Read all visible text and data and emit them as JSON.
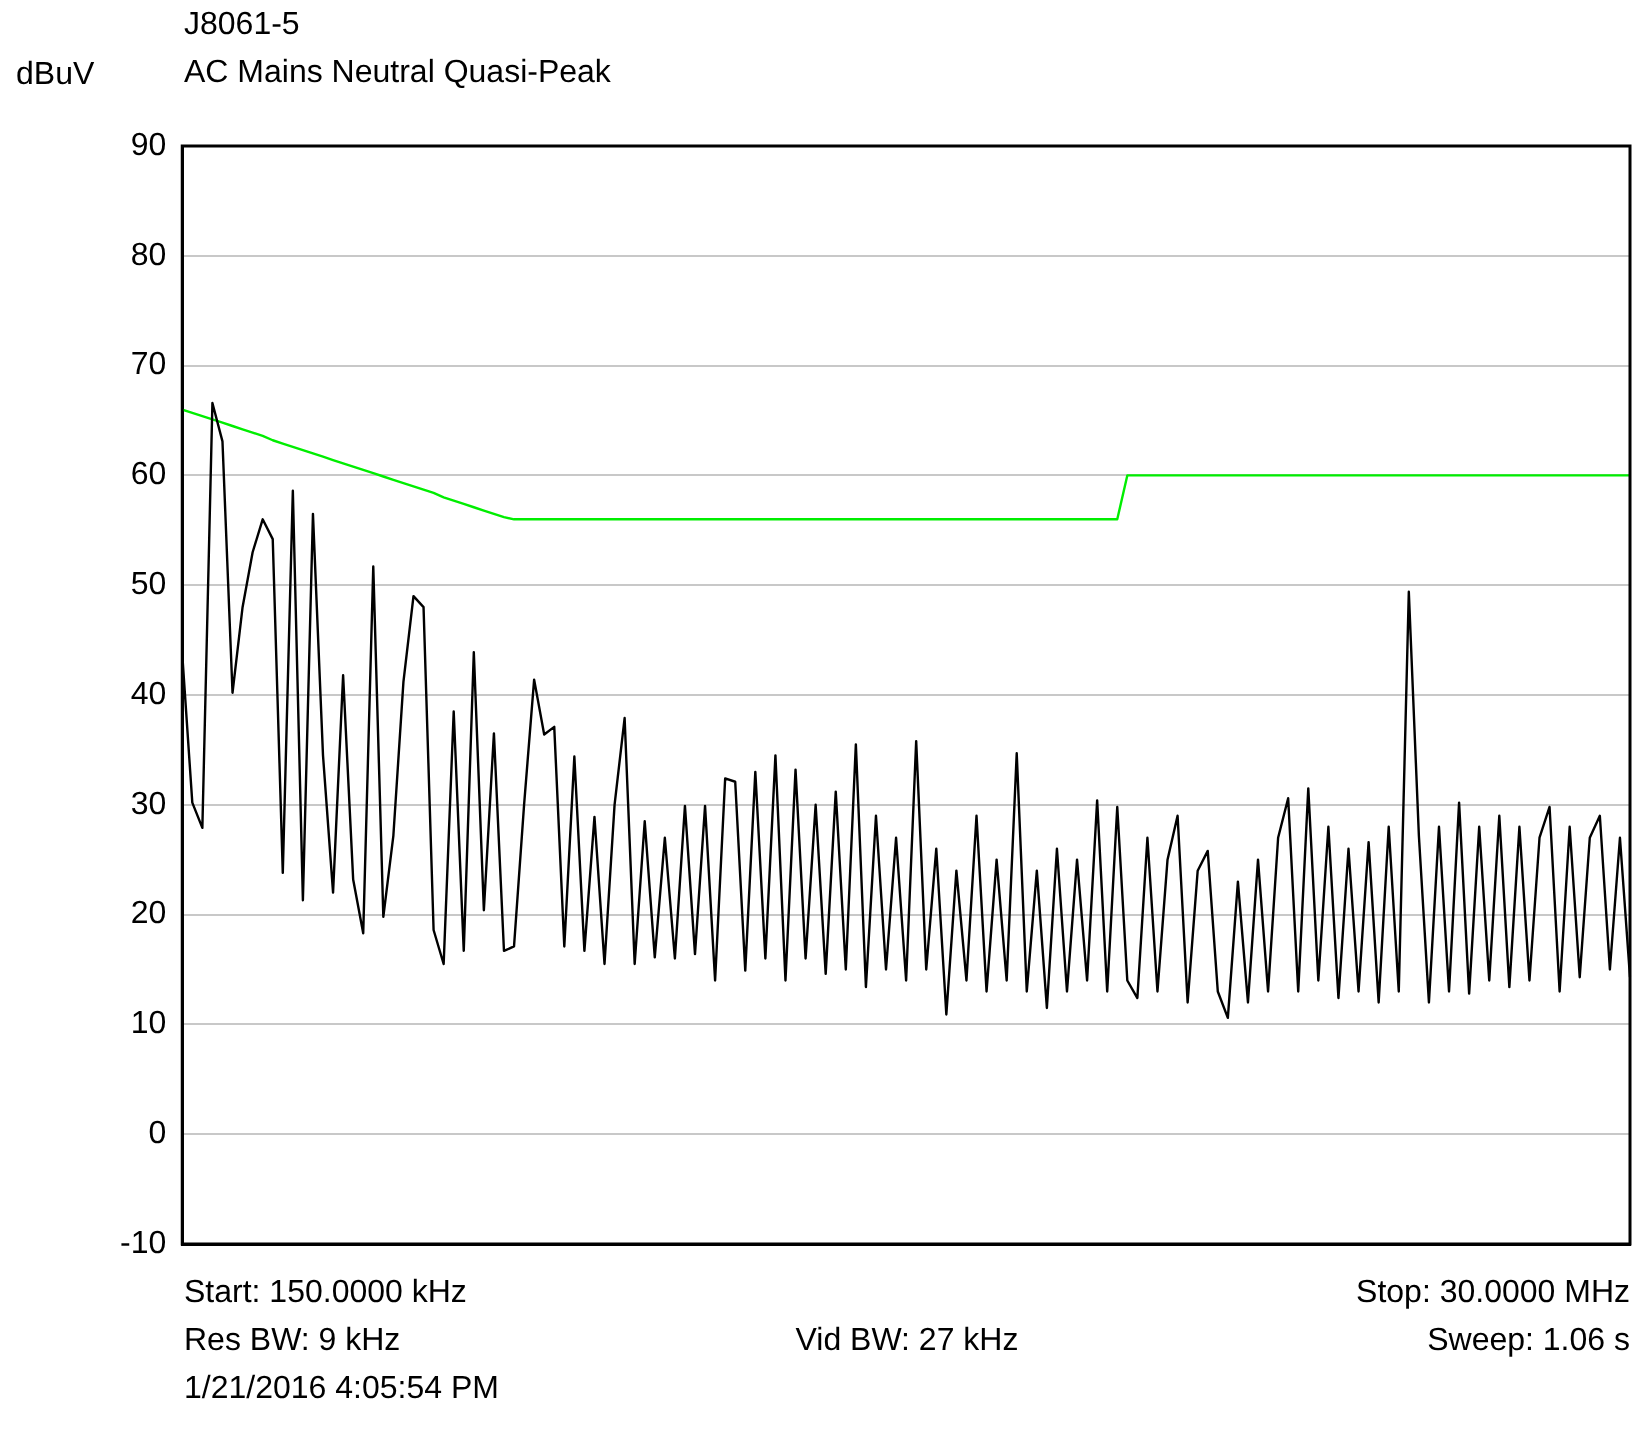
{
  "chart_data": {
    "type": "line",
    "title": "J8061-5",
    "subtitle": "AC Mains Neutral Quasi-Peak",
    "ylabel": "dBuV",
    "grid": "y",
    "legend": false,
    "tick_labels": "y",
    "marker": "none",
    "line_style": "solid",
    "categories": [
      null,
      null,
      null,
      null,
      null,
      null,
      null,
      null,
      null,
      null,
      null,
      null,
      null,
      null,
      null,
      null,
      null,
      null,
      null,
      null,
      null,
      null,
      null,
      null,
      null,
      null,
      null,
      null,
      null,
      null,
      null,
      null,
      null,
      null,
      null,
      null,
      null,
      null,
      null,
      null,
      null,
      null,
      null,
      null,
      null,
      null,
      null,
      null,
      null,
      null,
      null,
      null,
      null,
      null,
      null,
      null,
      null,
      null,
      null,
      null,
      null,
      null,
      null,
      null,
      null,
      null,
      null,
      null,
      null,
      null,
      null,
      null,
      null,
      null,
      null,
      null,
      null,
      null,
      null,
      null,
      null,
      null,
      null,
      null,
      null,
      null,
      null,
      null,
      null,
      null,
      null,
      null,
      null,
      null,
      null,
      null,
      null,
      null,
      null,
      null,
      null,
      null,
      null,
      null,
      null,
      null,
      null,
      null,
      null,
      null,
      null,
      null,
      null,
      null,
      null,
      null,
      null,
      null,
      null,
      null,
      null,
      null,
      null,
      null,
      null,
      null,
      null,
      null,
      null,
      null,
      null,
      null,
      null,
      null,
      null,
      null,
      null,
      null,
      null,
      null,
      null,
      null,
      null,
      null,
      null
    ],
    "ylim": [
      -10,
      90
    ],
    "yticks": [
      -10,
      0,
      10,
      20,
      30,
      40,
      50,
      60,
      70,
      80,
      90
    ],
    "series": [
      {
        "color": "#000000",
        "values": [
          43.7,
          30.2,
          27.9,
          66.6,
          63.1,
          40.2,
          48,
          53,
          56,
          54.2,
          23.8,
          58.6,
          21.3,
          56.5,
          34.5,
          22,
          41.8,
          23.2,
          18.3,
          51.7,
          19.8,
          27.2,
          41.2,
          49,
          48,
          18.6,
          15.5,
          38.5,
          16.7,
          43.9,
          20.4,
          36.5,
          16.7,
          17.1,
          30,
          41.4,
          36.4,
          37.1,
          17.1,
          34.4,
          16.7,
          28.9,
          15.5,
          30,
          37.9,
          15.5,
          28.5,
          16.1,
          27,
          16,
          29.9,
          16.4,
          29.9,
          14,
          32.4,
          32.1,
          14.9,
          33,
          16,
          34.5,
          14,
          33.2,
          16,
          30,
          14.6,
          31.2,
          15,
          35.5,
          13.4,
          29,
          15,
          27,
          14,
          35.8,
          15,
          26,
          10.9,
          24,
          14,
          29,
          13,
          25,
          14,
          34.7,
          13,
          24,
          11.5,
          26,
          13,
          25,
          14,
          30.4,
          13,
          29.8,
          14,
          12.4,
          27,
          13,
          25,
          29,
          12,
          24,
          25.8,
          13,
          10.6,
          23,
          12,
          25,
          13,
          27,
          30.6,
          13,
          31.5,
          14,
          28,
          12.4,
          26,
          13,
          26.6,
          12,
          28,
          13,
          49.4,
          27.2,
          12,
          28,
          13,
          30.2,
          12.8,
          28,
          14,
          29,
          13.4,
          28,
          14,
          27,
          29.8,
          13,
          28,
          14.3,
          27,
          29,
          15,
          27,
          14.3
        ]
      },
      {
        "color": "#00ee00",
        "values": [
          66,
          65.7,
          65.4,
          65.1,
          64.8,
          64.5,
          64.2,
          63.9,
          63.6,
          63.2,
          62.9,
          62.6,
          62.3,
          62,
          61.7,
          61.4,
          61.1,
          60.8,
          60.5,
          60.2,
          59.9,
          59.6,
          59.3,
          59,
          58.7,
          58.4,
          58,
          57.7,
          57.4,
          57.1,
          56.8,
          56.5,
          56.2,
          56,
          56,
          56,
          56,
          56,
          56,
          56,
          56,
          56,
          56,
          56,
          56,
          56,
          56,
          56,
          56,
          56,
          56,
          56,
          56,
          56,
          56,
          56,
          56,
          56,
          56,
          56,
          56,
          56,
          56,
          56,
          56,
          56,
          56,
          56,
          56,
          56,
          56,
          56,
          56,
          56,
          56,
          56,
          56,
          56,
          56,
          56,
          56,
          56,
          56,
          56,
          56,
          56,
          56,
          56,
          56,
          56,
          56,
          56,
          56,
          56,
          60,
          60,
          60,
          60,
          60,
          60,
          60,
          60,
          60,
          60,
          60,
          60,
          60,
          60,
          60,
          60,
          60,
          60,
          60,
          60,
          60,
          60,
          60,
          60,
          60,
          60,
          60,
          60,
          60,
          60,
          60,
          60,
          60,
          60,
          60,
          60,
          60,
          60,
          60,
          60,
          60,
          60,
          60,
          60,
          60,
          60,
          60,
          60,
          60,
          60,
          60
        ]
      }
    ],
    "annotations": [
      "Start: 150.0000 kHz",
      "Stop: 30.0000 MHz",
      "Res BW: 9 kHz",
      "Vid BW: 27 kHz",
      "Sweep: 1.06 s",
      "1/21/2016 4:05:54 PM"
    ]
  }
}
